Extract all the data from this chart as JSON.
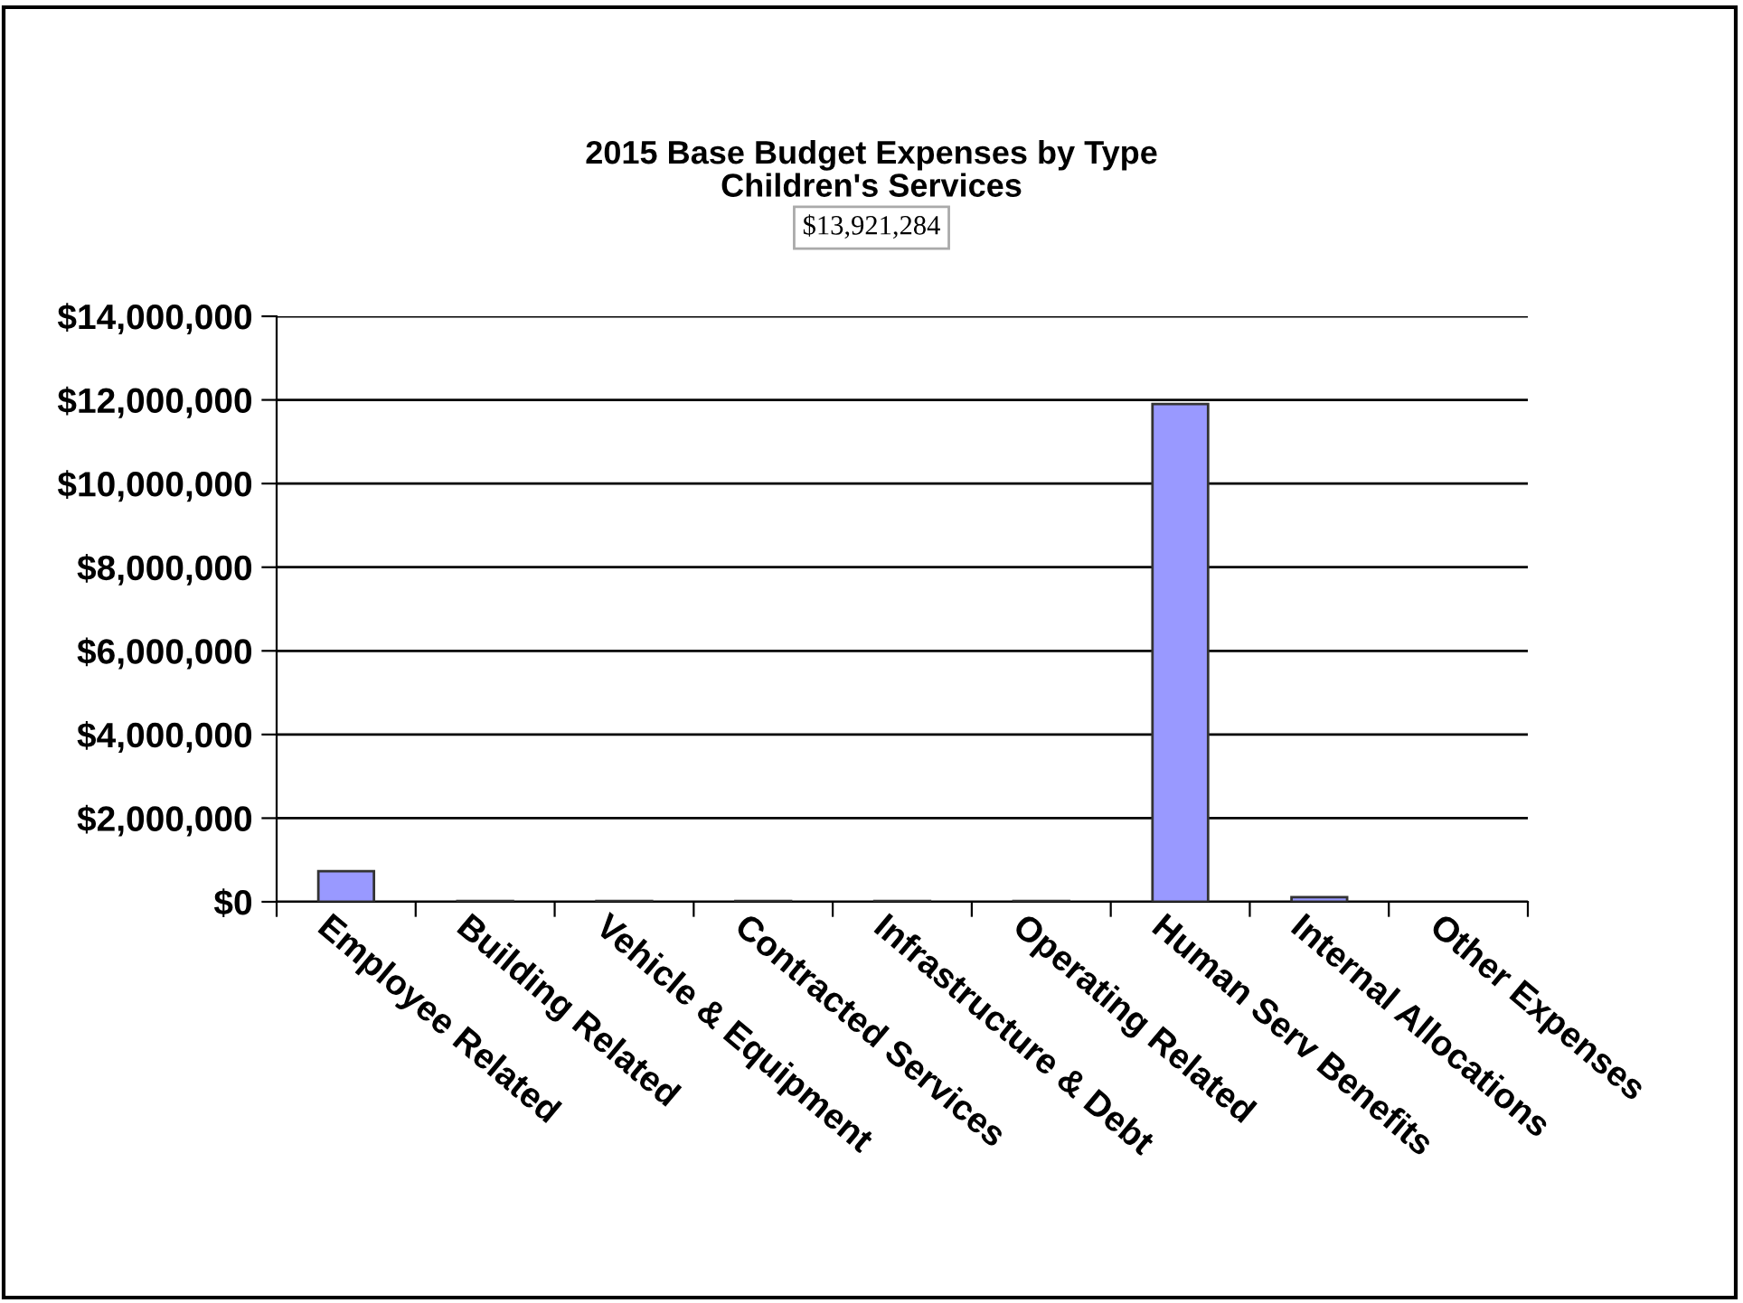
{
  "chart_data": {
    "type": "bar",
    "title": "2015 Base Budget Expenses by Type\nChildren's Services",
    "subtitle": "$13,921,284",
    "categories": [
      "Employee Related",
      "Building Related",
      "Vehicle & Equipment",
      "Contracted Services",
      "Infrastructure & Debt",
      "Operating Related",
      "Human Serv Benefits",
      "Internal Allocations",
      "Other Expenses"
    ],
    "values": [
      730000,
      20000,
      20000,
      20000,
      20000,
      20000,
      11900000,
      110000,
      null
    ],
    "color": "#9999ff",
    "ylim": [
      0,
      14000000
    ],
    "yticks": [
      {
        "value": 0,
        "label": "$0"
      },
      {
        "value": 2000000,
        "label": "$2,000,000"
      },
      {
        "value": 4000000,
        "label": "$4,000,000"
      },
      {
        "value": 6000000,
        "label": "$6,000,000"
      },
      {
        "value": 8000000,
        "label": "$8,000,000"
      },
      {
        "value": 10000000,
        "label": "$10,000,000"
      },
      {
        "value": 12000000,
        "label": "$12,000,000"
      },
      {
        "value": 14000000,
        "label": "$14,000,000"
      }
    ],
    "grid": "y",
    "legend": false
  }
}
